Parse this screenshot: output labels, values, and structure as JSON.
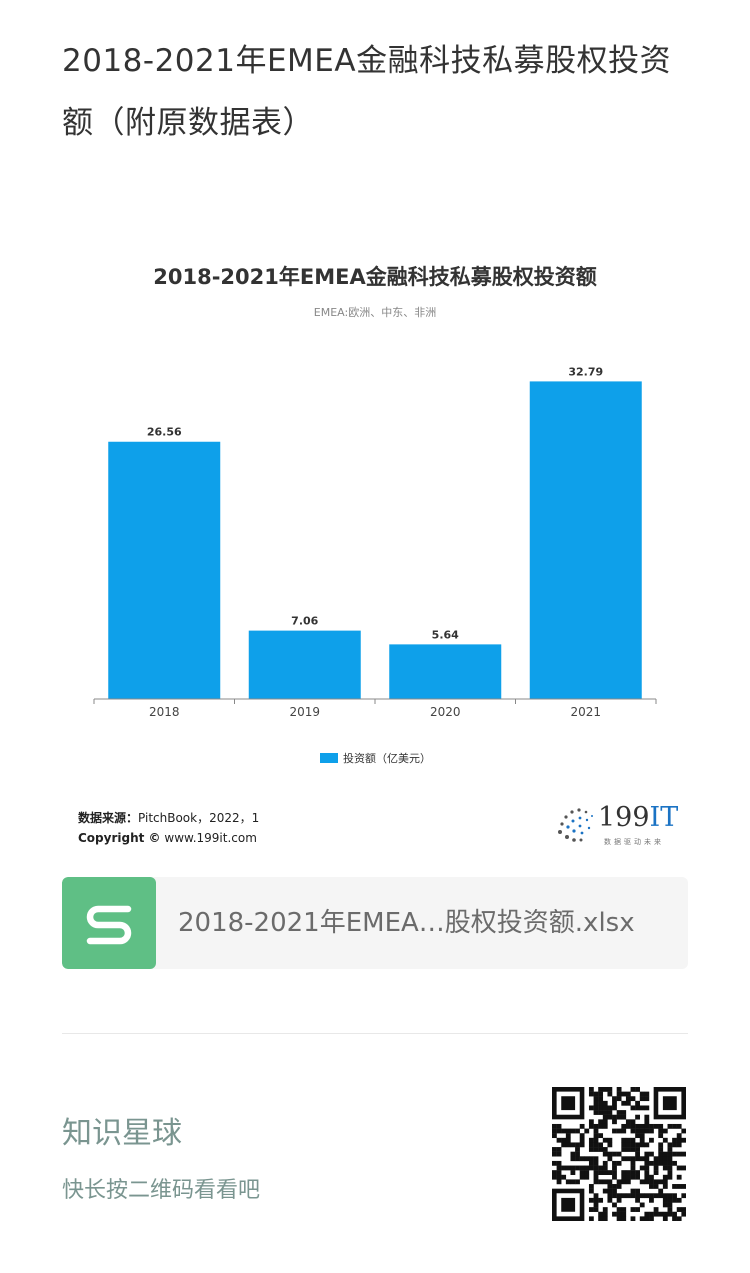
{
  "page": {
    "title": "2018-2021年EMEA金融科技私募股权投资额（附原数据表）"
  },
  "chart_data": {
    "type": "bar",
    "title": "2018-2021年EMEA金融科技私募股权投资额",
    "subtitle": "EMEA:欧洲、中东、非洲",
    "categories": [
      "2018",
      "2019",
      "2020",
      "2021"
    ],
    "series": [
      {
        "name": "投资额（亿美元）",
        "values": [
          26.56,
          7.06,
          5.64,
          32.79
        ]
      }
    ],
    "data_labels": [
      "26.56",
      "7.06",
      "5.64",
      "32.79"
    ],
    "ylim": [
      0,
      35
    ],
    "grid": false,
    "legend": "bottom-center",
    "bar_color": "#0ea0ea"
  },
  "source": {
    "label": "数据来源：",
    "text": "PitchBook，2022，1",
    "copyright_label": "Copyright ©",
    "site": "www.199it.com"
  },
  "logo": {
    "number": "199",
    "suffix": "IT",
    "slogan": "数据驱动未来"
  },
  "attachment": {
    "icon": "spreadsheet-s-icon",
    "filename": "2018-2021年EMEA…股权投资额.xlsx",
    "color": "#5fbf85"
  },
  "promo": {
    "title": "知识星球",
    "subtitle": "快长按二维码看看吧",
    "text_color": "#7a9590"
  }
}
